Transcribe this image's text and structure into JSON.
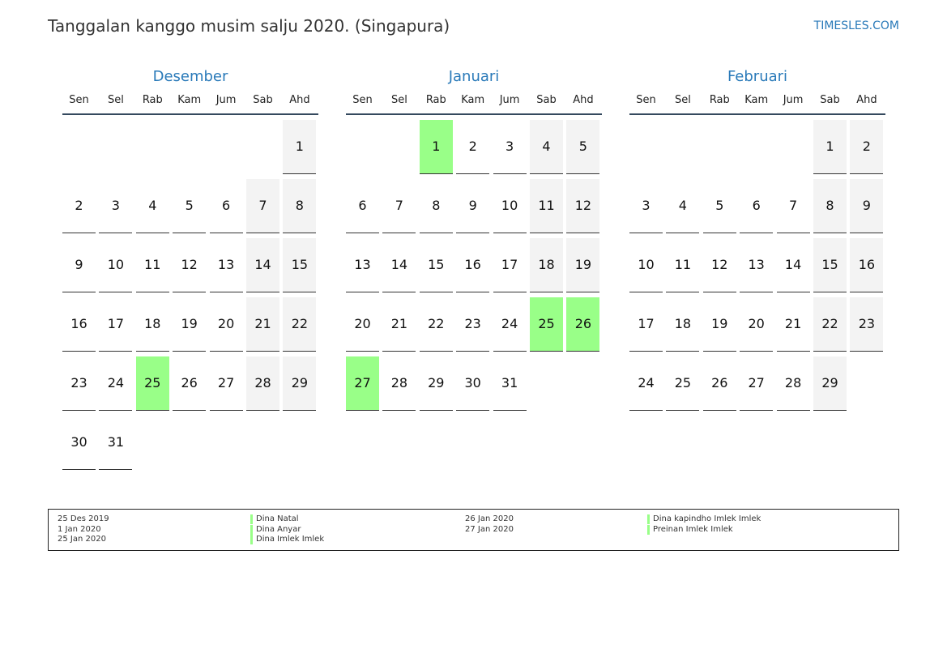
{
  "header": {
    "title": "Tanggalan kanggo musim salju 2020. (Singapura)",
    "site": "TIMESLES.COM"
  },
  "weekdays": [
    "Sen",
    "Sel",
    "Rab",
    "Kam",
    "Jum",
    "Sab",
    "Ahd"
  ],
  "months": [
    {
      "name": "Desember",
      "start_col": 6,
      "days": 31,
      "holidays": [
        25
      ]
    },
    {
      "name": "Januari",
      "start_col": 2,
      "days": 31,
      "holidays": [
        1,
        25,
        26,
        27
      ]
    },
    {
      "name": "Februari",
      "start_col": 5,
      "days": 29,
      "holidays": []
    }
  ],
  "legend": {
    "left": [
      {
        "date": "25 Des 2019",
        "name": "Dina Natal"
      },
      {
        "date": "1 Jan 2020",
        "name": "Dina Anyar"
      },
      {
        "date": "25 Jan 2020",
        "name": "Dina Imlek Imlek"
      }
    ],
    "right": [
      {
        "date": "26 Jan 2020",
        "name": "Dina kapindho Imlek Imlek"
      },
      {
        "date": "27 Jan 2020",
        "name": "Preinan Imlek Imlek"
      }
    ],
    "highlight_color": "#99ff88"
  }
}
